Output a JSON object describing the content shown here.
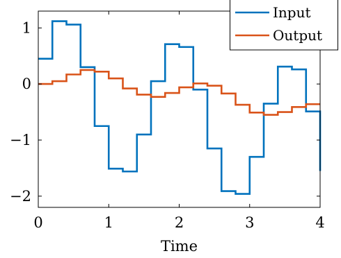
{
  "chart_data": {
    "type": "line",
    "step": "post",
    "title": "",
    "xlabel": "Time",
    "ylabel": "",
    "xlim": [
      0,
      4
    ],
    "ylim": [
      -2.2,
      1.3
    ],
    "xticks": [
      0,
      1,
      2,
      3,
      4
    ],
    "xtick_labels": [
      "0",
      "1",
      "2",
      "3",
      "4"
    ],
    "yticks": [
      -2,
      -1,
      0,
      1
    ],
    "ytick_labels": [
      "−2",
      "−1",
      "0",
      "1"
    ],
    "grid": false,
    "legend_position": "top-right",
    "x": [
      0,
      0.2,
      0.4,
      0.6,
      0.8,
      1.0,
      1.2,
      1.4,
      1.6,
      1.8,
      2.0,
      2.2,
      2.4,
      2.6,
      2.8,
      3.0,
      3.2,
      3.4,
      3.6,
      3.8,
      4.0
    ],
    "series": [
      {
        "name": "Input",
        "color": "#0072bd",
        "values": [
          0.45,
          1.12,
          1.06,
          0.3,
          -0.75,
          -1.51,
          -1.56,
          -0.9,
          0.05,
          0.71,
          0.66,
          -0.1,
          -1.15,
          -1.91,
          -1.96,
          -1.3,
          -0.35,
          0.31,
          0.26,
          -0.49,
          -1.55
        ]
      },
      {
        "name": "Output",
        "color": "#d95319",
        "values": [
          0.0,
          0.05,
          0.17,
          0.25,
          0.22,
          0.1,
          -0.08,
          -0.19,
          -0.23,
          -0.16,
          -0.06,
          0.01,
          -0.03,
          -0.17,
          -0.37,
          -0.51,
          -0.55,
          -0.5,
          -0.41,
          -0.36,
          -0.36
        ]
      }
    ]
  }
}
